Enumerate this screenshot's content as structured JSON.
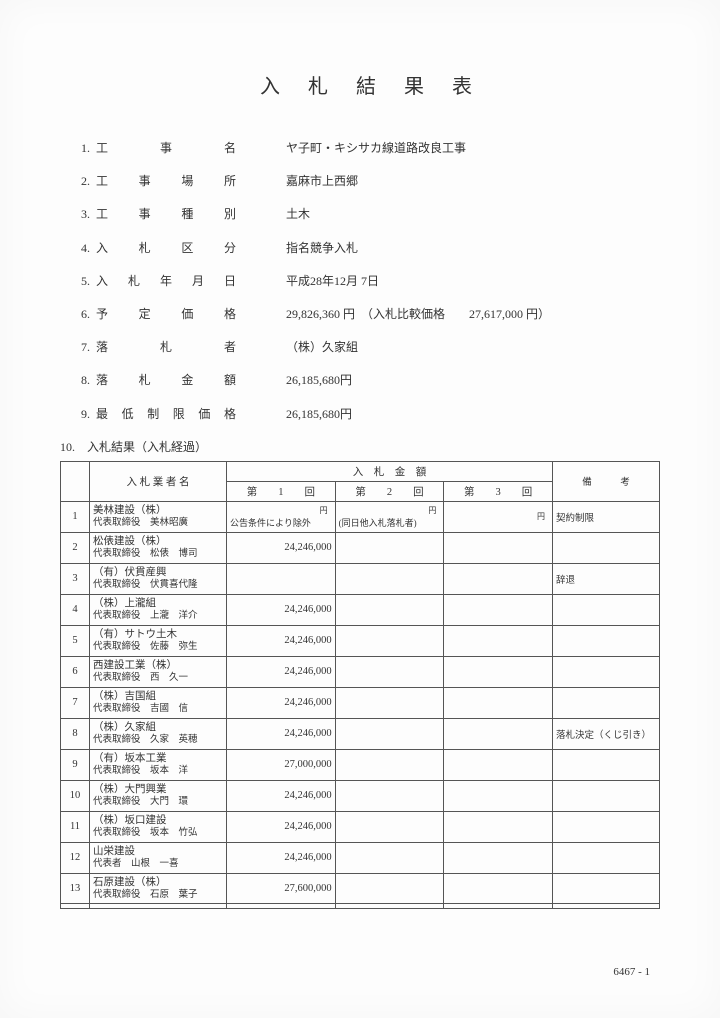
{
  "title": "入札結果表",
  "info": [
    {
      "num": "1.",
      "label": [
        "工",
        "事",
        "名"
      ],
      "value": "ヤ子町・キシサカ線道路改良工事"
    },
    {
      "num": "2.",
      "label": [
        "工",
        "事",
        "場",
        "所"
      ],
      "value": "嘉麻市上西郷"
    },
    {
      "num": "3.",
      "label": [
        "工",
        "事",
        "種",
        "別"
      ],
      "value": "土木"
    },
    {
      "num": "4.",
      "label": [
        "入",
        "札",
        "区",
        "分"
      ],
      "value": "指名競争入札"
    },
    {
      "num": "5.",
      "label": [
        "入",
        "札",
        "年",
        "月",
        "日"
      ],
      "value": "平成28年12月 7日"
    },
    {
      "num": "6.",
      "label": [
        "予",
        "定",
        "価",
        "格"
      ],
      "value": "29,826,360 円　（入札比較価格　　27,617,000 円）"
    },
    {
      "num": "7.",
      "label": [
        "落",
        "札",
        "者"
      ],
      "value": "（株）久家組"
    },
    {
      "num": "8.",
      "label": [
        "落",
        "札",
        "金",
        "額"
      ],
      "value": "26,185,680円"
    },
    {
      "num": "9.",
      "label": [
        "最",
        "低",
        "制",
        "限",
        "価",
        "格"
      ],
      "value": "26,185,680円"
    }
  ],
  "section10": "10.　入札結果（入札経過）",
  "table": {
    "header_bidder": "入 札 業 者 名",
    "header_amount": "入　札　金　額",
    "header_remark": "備　　　考",
    "rounds": [
      {
        "label": "第　　1　　回"
      },
      {
        "label": "第　　2　　回"
      },
      {
        "label": "第　　3　　回"
      }
    ],
    "yen": "円",
    "rows": [
      {
        "n": "1",
        "name1": "美林建設（株）",
        "name2": "代表取締役　美林昭廣",
        "r1": "公告条件により除外",
        "r2": "(同日他入札落札者)",
        "r3": "",
        "remark": "契約制限"
      },
      {
        "n": "2",
        "name1": "松俵建設（株）",
        "name2": "代表取締役　松俵　博司",
        "r1": "24,246,000",
        "r2": "",
        "r3": "",
        "remark": ""
      },
      {
        "n": "3",
        "name1": "（有）伏貫産興",
        "name2": "代表取締役　伏貫喜代隆",
        "r1": "",
        "r2": "",
        "r3": "",
        "remark": "辞退"
      },
      {
        "n": "4",
        "name1": "（株）上瀧組",
        "name2": "代表取締役　上瀧　洋介",
        "r1": "24,246,000",
        "r2": "",
        "r3": "",
        "remark": ""
      },
      {
        "n": "5",
        "name1": "（有）サトウ土木",
        "name2": "代表取締役　佐藤　弥生",
        "r1": "24,246,000",
        "r2": "",
        "r3": "",
        "remark": ""
      },
      {
        "n": "6",
        "name1": "西建設工業（株）",
        "name2": "代表取締役　西　久一",
        "r1": "24,246,000",
        "r2": "",
        "r3": "",
        "remark": ""
      },
      {
        "n": "7",
        "name1": "（株）吉国組",
        "name2": "代表取締役　吉國　信",
        "r1": "24,246,000",
        "r2": "",
        "r3": "",
        "remark": ""
      },
      {
        "n": "8",
        "name1": "（株）久家組",
        "name2": "代表取締役　久家　英穂",
        "r1": "24,246,000",
        "r2": "",
        "r3": "",
        "remark": "落札決定（くじ引き）"
      },
      {
        "n": "9",
        "name1": "（有）坂本工業",
        "name2": "代表取締役　坂本　洋",
        "r1": "27,000,000",
        "r2": "",
        "r3": "",
        "remark": ""
      },
      {
        "n": "10",
        "name1": "（株）大門興業",
        "name2": "代表取締役　大門　環",
        "r1": "24,246,000",
        "r2": "",
        "r3": "",
        "remark": ""
      },
      {
        "n": "11",
        "name1": "（株）坂口建設",
        "name2": "代表取締役　坂本　竹弘",
        "r1": "24,246,000",
        "r2": "",
        "r3": "",
        "remark": ""
      },
      {
        "n": "12",
        "name1": "山栄建設",
        "name2": "代表者　山根　一喜",
        "r1": "24,246,000",
        "r2": "",
        "r3": "",
        "remark": ""
      },
      {
        "n": "13",
        "name1": "石原建設（株）",
        "name2": "代表取締役　石原　葉子",
        "r1": "27,600,000",
        "r2": "",
        "r3": "",
        "remark": ""
      },
      {
        "n": "",
        "name1": "",
        "name2": "",
        "r1": "",
        "r2": "",
        "r3": "",
        "remark": ""
      }
    ]
  },
  "footer": "6467 - 1"
}
